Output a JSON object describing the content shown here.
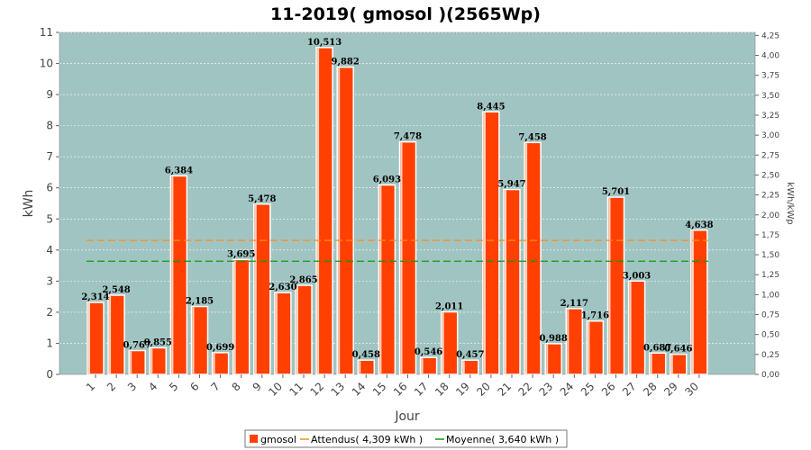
{
  "chart_data": {
    "type": "bar",
    "title": "11-2019( gmosol )(2565Wp)",
    "xlabel": "Jour",
    "ylabel": "kWh",
    "ylabel_right": "kWh/kWp",
    "ylim": [
      0,
      11
    ],
    "ylim_right": [
      0,
      4.288
    ],
    "yticks": [
      "0",
      "1",
      "2",
      "3",
      "4",
      "5",
      "6",
      "7",
      "8",
      "9",
      "10",
      "11"
    ],
    "yticks_right": [
      "0,00",
      "0,25",
      "0,50",
      "0,75",
      "1,00",
      "1,25",
      "1,50",
      "1,75",
      "2,00",
      "2,25",
      "2,50",
      "2,75",
      "3,00",
      "3,25",
      "3,50",
      "3,75",
      "4,00",
      "4,25"
    ],
    "categories": [
      "1",
      "2",
      "3",
      "4",
      "5",
      "6",
      "7",
      "8",
      "9",
      "10",
      "11",
      "12",
      "13",
      "14",
      "15",
      "16",
      "17",
      "18",
      "19",
      "20",
      "21",
      "22",
      "23",
      "24",
      "25",
      "26",
      "27",
      "28",
      "29",
      "30"
    ],
    "series": [
      {
        "name": "gmosol",
        "color": "#ff4000",
        "values": [
          2.314,
          2.548,
          0.767,
          0.855,
          6.384,
          2.185,
          0.699,
          3.695,
          5.478,
          2.63,
          2.865,
          10.513,
          9.882,
          0.458,
          6.093,
          7.478,
          0.546,
          2.011,
          0.457,
          8.445,
          5.947,
          7.458,
          0.988,
          2.117,
          1.716,
          5.701,
          3.003,
          0.687,
          0.646,
          4.638
        ],
        "labels": [
          "2,314",
          "2,548",
          "0,767",
          "0,855",
          "6,384",
          "2,185",
          "0,699",
          "3,695",
          "5,478",
          "2,630",
          "2,865",
          "10,513",
          "9,882",
          "0,458",
          "6,093",
          "7,478",
          "0,546",
          "2,011",
          "0,457",
          "8,445",
          "5,947",
          "7,458",
          "0,988",
          "2,117",
          "1,716",
          "5,701",
          "3,003",
          "0,687",
          "0,646",
          "4,638"
        ]
      }
    ],
    "reference_lines": [
      {
        "name": "Attendus",
        "value": 4.309,
        "color": "#ff8c1a",
        "style": "dashed"
      },
      {
        "name": "Moyenne",
        "value": 3.64,
        "color": "#119911",
        "style": "dashed"
      }
    ],
    "legend": {
      "placement": "bottom",
      "items": [
        "gmosol",
        "Attendus( 4,309 kWh )",
        "Moyenne( 3,640 kWh )"
      ]
    },
    "plot_background": "#a0c4c2",
    "grid": true
  }
}
